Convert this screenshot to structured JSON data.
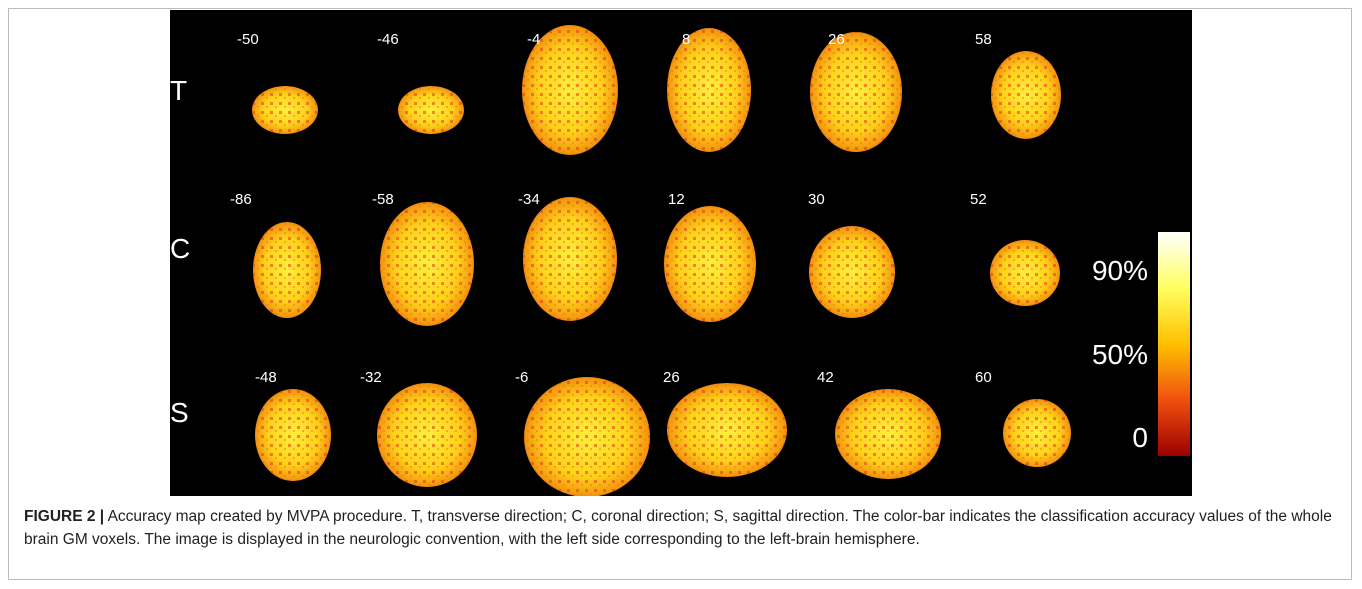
{
  "figure": {
    "rows": [
      {
        "label": "T",
        "slices": [
          "-50",
          "-46",
          "-4",
          "8",
          "26",
          "58"
        ]
      },
      {
        "label": "C",
        "slices": [
          "-86",
          "-58",
          "-34",
          "12",
          "30",
          "52"
        ]
      },
      {
        "label": "S",
        "slices": [
          "-48",
          "-32",
          "-6",
          "26",
          "42",
          "60"
        ]
      }
    ],
    "colorbar": {
      "labels": [
        "90%",
        "50%",
        "0"
      ]
    }
  },
  "caption": {
    "label": "FIGURE 2 |",
    "text": " Accuracy map created by MVPA procedure. T, transverse direction; C, coronal direction; S, sagittal direction. The color-bar indicates the classification accuracy values of the whole brain GM voxels. The image is displayed in the neurologic convention, with the left side corresponding to the left-brain hemisphere."
  }
}
